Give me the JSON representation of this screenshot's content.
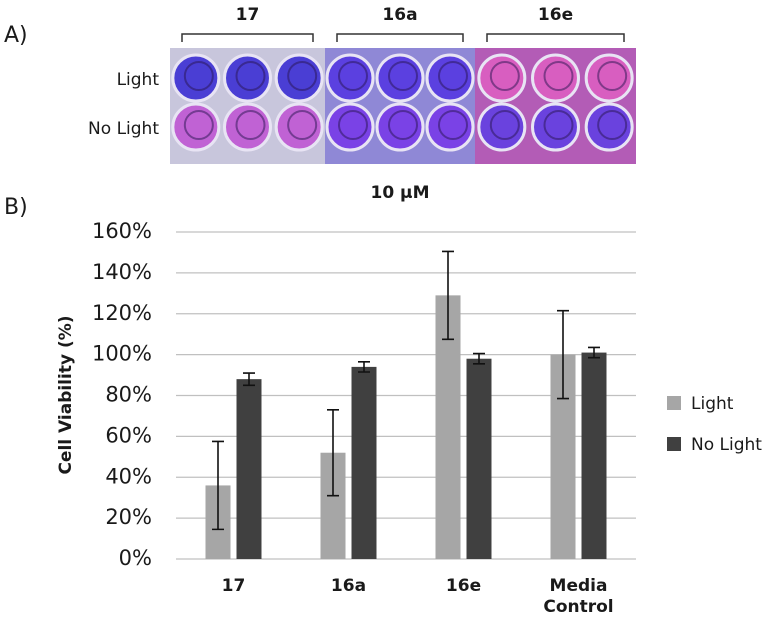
{
  "panel_a": {
    "label": "A)",
    "groups": [
      "17",
      "16a",
      "16e"
    ],
    "rows": [
      "Light",
      "No Light"
    ]
  },
  "panel_b_label": "B)",
  "chart_data": {
    "type": "bar",
    "title": "10 µM",
    "y_label": "Cell Viability (%)",
    "categories": [
      "17",
      "16a",
      "16e",
      "Media Control"
    ],
    "series": [
      {
        "name": "Light",
        "color": "#a6a6a6",
        "values": [
          36,
          52,
          129,
          100
        ],
        "errors": [
          21.5,
          21,
          21.5,
          21.5
        ]
      },
      {
        "name": "No Light",
        "color": "#404040",
        "values": [
          88,
          94,
          98,
          101
        ],
        "errors": [
          3,
          2.5,
          2.5,
          2.5
        ]
      }
    ],
    "ylim": [
      0,
      160
    ],
    "yticks": [
      {
        "value": 0,
        "label": "0%"
      },
      {
        "value": 20,
        "label": "20%"
      },
      {
        "value": 40,
        "label": "40%"
      },
      {
        "value": 60,
        "label": "60%"
      },
      {
        "value": 80,
        "label": "80%"
      },
      {
        "value": 100,
        "label": "100%"
      },
      {
        "value": 120,
        "label": "120%"
      },
      {
        "value": 140,
        "label": "140%"
      },
      {
        "value": 160,
        "label": "160%"
      }
    ],
    "grid": true,
    "legend": "right"
  }
}
